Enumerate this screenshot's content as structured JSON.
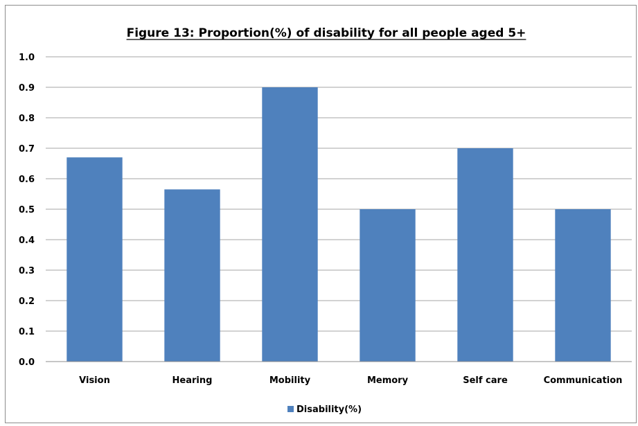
{
  "chart_data": {
    "type": "bar",
    "title": "Figure 13: Proportion(%) of disability for all people aged 5+",
    "xlabel": "",
    "ylabel": "",
    "categories": [
      "Vision",
      "Hearing",
      "Mobility",
      "Memory",
      "Self care",
      "Communication"
    ],
    "series": [
      {
        "name": "Disability(%)",
        "values": [
          0.67,
          0.565,
          0.9,
          0.5,
          0.7,
          0.5
        ]
      }
    ],
    "ylim": [
      0,
      1.0
    ],
    "yticks": [
      "0.0",
      "0.1",
      "0.2",
      "0.3",
      "0.4",
      "0.5",
      "0.6",
      "0.7",
      "0.8",
      "0.9",
      "1.0"
    ],
    "grid": true,
    "legend_position": "bottom",
    "bar_color": "#4f81bd",
    "grid_color": "#a6a6a6"
  }
}
